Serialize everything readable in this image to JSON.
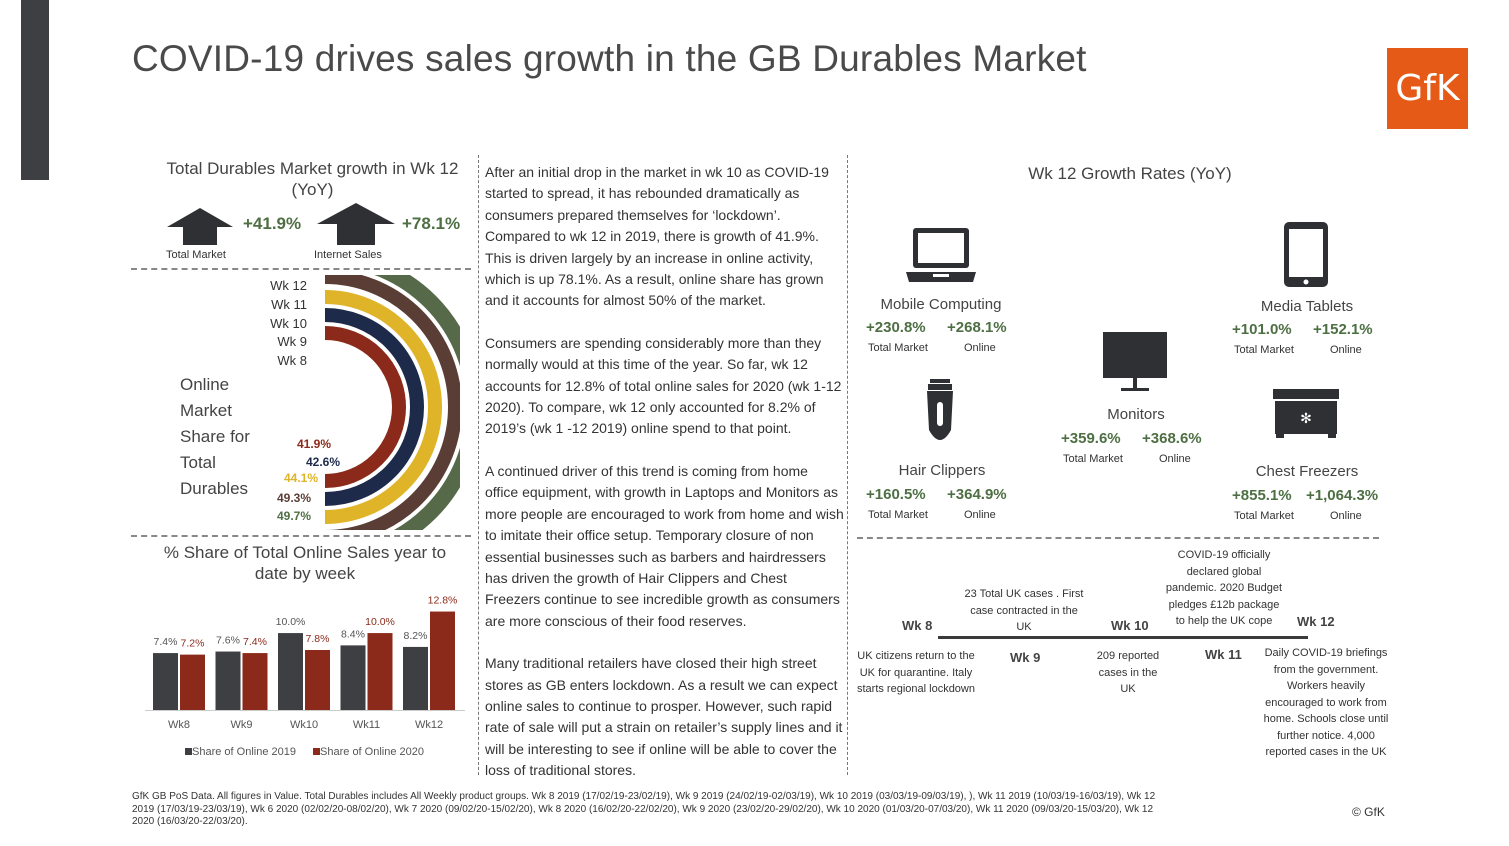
{
  "title": "COVID-19 drives sales growth in the GB Durables Market",
  "logo": "GfK",
  "market_growth": {
    "title": "Total Durables Market growth in Wk 12 (YoY)",
    "items": [
      {
        "label": "Total Market",
        "value": "+41.9%"
      },
      {
        "label": "Internet Sales",
        "value": "+78.1%"
      }
    ]
  },
  "online_share_label": "Online Market Share for Total Durables",
  "bar_chart_title": "% Share of Total Online Sales year to date by week",
  "paragraphs": [
    "After an initial drop in the market in wk 10 as COVID-19 started to spread, it has rebounded dramatically as consumers prepared themselves for ‘lockdown’. Compared to wk 12 in 2019, there is growth of 41.9%. This is driven largely by an increase in online activity, which is up 78.1%. As a result, online share has grown and it accounts for almost 50% of the market.",
    "Consumers are spending considerably more than they normally would at this time of the year. So far, wk 12 accounts for 12.8% of total online sales for 2020 (wk 1-12 2020). To compare, wk 12 only accounted for 8.2% of 2019’s (wk 1 -12 2019) online spend to that point.",
    "A continued driver of this trend is coming from home office equipment, with growth in Laptops and Monitors as more people are encouraged to work from home and wish to imitate their office setup. Temporary closure of non essential businesses such as barbers and hairdressers has driven the growth of Hair Clippers and Chest Freezers continue to see incredible growth as consumers are more conscious of their food reserves.",
    "Many traditional retailers have closed their high street stores as GB enters lockdown. As a result we can expect online sales to continue to prosper. However, such rapid rate of sale will put a strain on retailer’s supply lines and it will be interesting to see if online will be able to cover the loss of traditional stores."
  ],
  "growth_rates": {
    "title": "Wk 12 Growth Rates (YoY)",
    "col_labels": [
      "Total Market",
      "Online"
    ],
    "products": [
      {
        "name": "Mobile Computing",
        "total": "+230.8%",
        "online": "+268.1%",
        "icon": "laptop-icon"
      },
      {
        "name": "Media Tablets",
        "total": "+101.0%",
        "online": "+152.1%",
        "icon": "tablet-icon"
      },
      {
        "name": "Monitors",
        "total": "+359.6%",
        "online": "+368.6%",
        "icon": "monitor-icon"
      },
      {
        "name": "Hair Clippers",
        "total": "+160.5%",
        "online": "+364.9%",
        "icon": "hair-clipper-icon"
      },
      {
        "name": "Chest Freezers",
        "total": "+855.1%",
        "online": "+1,064.3%",
        "icon": "freezer-icon"
      }
    ]
  },
  "timeline": {
    "weeks": [
      "Wk 8",
      "Wk 9",
      "Wk 10",
      "Wk 11",
      "Wk 12"
    ],
    "events": [
      "UK citizens return to the UK for quarantine. Italy starts regional lockdown",
      "23 Total UK cases . First case contracted in the UK",
      "209 reported cases in the UK",
      "COVID-19 officially declared global pandemic. 2020 Budget pledges £12b package to help the UK cope",
      "Daily COVID-19 briefings from the government. Workers heavily encouraged to work from home. Schools close until further notice. 4,000 reported cases in the UK"
    ]
  },
  "footnote": "GfK GB PoS Data. All figures in Value. Total Durables includes All Weekly product groups. Wk 8 2019 (17/02/19-23/02/19), Wk 9 2019 (24/02/19-02/03/19), Wk 10 2019 (03/03/19-09/03/19), ), Wk 11 2019 (10/03/19-16/03/19), Wk 12 2019 (17/03/19-23/03/19), Wk 6 2020 (02/02/20-08/02/20), Wk 7 2020 (09/02/20-15/02/20), Wk 8 2020 (16/02/20-22/02/20), Wk 9 2020 (23/02/20-29/02/20), Wk 10 2020 (01/03/20-07/03/20), Wk 11 2020 (09/03/20-15/03/20), Wk 12 2020 (16/03/20-22/03/20).",
  "copyright": "© GfK",
  "colors": {
    "green": "#4e6f43",
    "maroon": "#8b2a1a",
    "navy": "#1e2a4a",
    "gold": "#e0b428",
    "brown": "#5a3e36",
    "sage": "#566a4a",
    "grey": "#3d3f43",
    "brand": "#e55a16"
  },
  "chart_data": [
    {
      "type": "radial-bar",
      "categories": [
        "Wk 12",
        "Wk 11",
        "Wk 10",
        "Wk 9",
        "Wk 8"
      ],
      "values": [
        49.7,
        49.3,
        44.1,
        42.6,
        41.9
      ],
      "value_labels": [
        "49.7%",
        "49.3%",
        "44.1%",
        "42.6%",
        "41.9%"
      ],
      "colors": [
        "#566a4a",
        "#5a3e36",
        "#e0b428",
        "#1e2a4a",
        "#8b2a1a"
      ],
      "label_colors": [
        "#4e6f43",
        "#5a3e36",
        "#e0b428",
        "#1e2a4a",
        "#8b2a1a"
      ]
    },
    {
      "type": "bar",
      "title": "% Share of Total Online Sales year to date by week",
      "categories": [
        "Wk8",
        "Wk9",
        "Wk10",
        "Wk11",
        "Wk12"
      ],
      "series": [
        {
          "name": "Share of Online 2019",
          "values": [
            7.4,
            7.6,
            10.0,
            8.4,
            8.2
          ],
          "labels": [
            "7.4%",
            "7.6%",
            "10.0%",
            "8.4%",
            "8.2%"
          ],
          "color": "#3d3f43"
        },
        {
          "name": "Share of Online 2020",
          "values": [
            7.2,
            7.4,
            7.8,
            10.0,
            12.8
          ],
          "labels": [
            "7.2%",
            "7.4%",
            "7.8%",
            "10.0%",
            "12.8%"
          ],
          "color": "#8b2a1a"
        }
      ],
      "ylim": [
        0,
        13
      ]
    }
  ]
}
